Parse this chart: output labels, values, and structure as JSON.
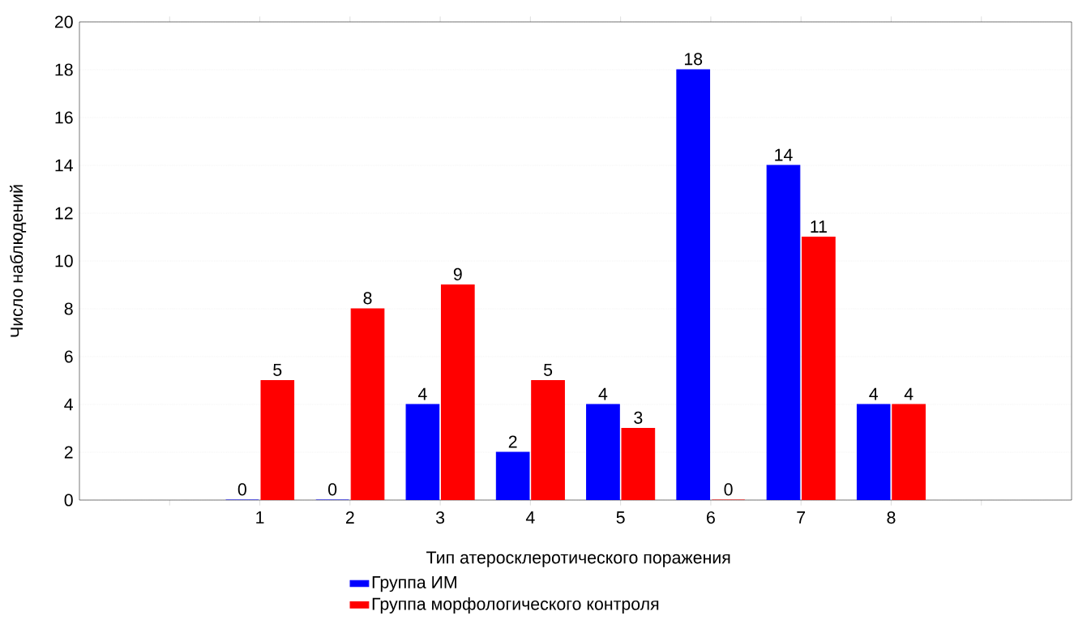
{
  "chart_data": {
    "type": "bar",
    "xlabel": "Тип атеросклеротического поражения",
    "ylabel": "Число наблюдений",
    "categories": [
      null,
      "1",
      "2",
      "3",
      "4",
      "5",
      "6",
      "7",
      "8",
      null
    ],
    "series": [
      {
        "name": "Группа ИМ",
        "color": "#0000ff",
        "values": [
          null,
          0,
          0,
          4,
          2,
          4,
          18,
          14,
          4,
          null
        ]
      },
      {
        "name": "Группа морфологического контроля",
        "color": "#ff0000",
        "values": [
          null,
          5,
          8,
          9,
          5,
          3,
          0,
          11,
          4,
          null
        ]
      }
    ],
    "ylim": [
      0,
      20
    ],
    "yticks": [
      0,
      2,
      4,
      6,
      8,
      10,
      12,
      14,
      16,
      18,
      20
    ],
    "grid": "y",
    "legend": "bottom",
    "data_labels": true
  }
}
